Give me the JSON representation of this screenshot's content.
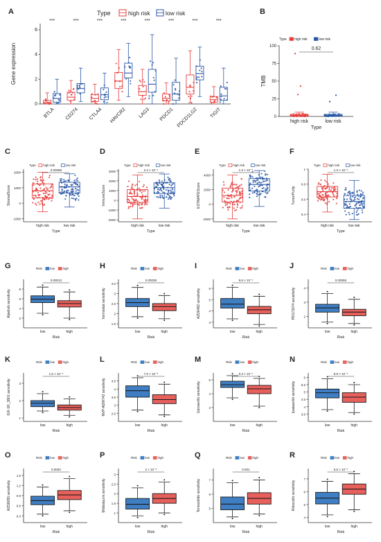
{
  "colors": {
    "high": "#e63b3b",
    "low": "#2856a6",
    "high_fill": "#e8605c",
    "low_fill": "#3f7ec3",
    "axis": "#333333"
  },
  "chart_data": [
    {
      "panel": "A",
      "type": "boxplot",
      "legend_title": "Type",
      "legend": [
        "high risk",
        "low risk"
      ],
      "legend_position": "top",
      "ylabel": "Gene expression",
      "ylim": [
        0,
        6.5
      ],
      "yticks": [
        0,
        2,
        4,
        6
      ],
      "categories": [
        "BTLA",
        "CD274",
        "CTLA4",
        "HAVCR2",
        "LAG3",
        "PDCD1",
        "PDCD1LG2",
        "TIGIT"
      ],
      "significance": [
        "***",
        "***",
        "***",
        "***",
        "***",
        "***",
        "***",
        "***"
      ],
      "series": [
        {
          "name": "high risk",
          "boxes": [
            [
              0,
              0.02,
              0.1,
              0.3,
              0.9
            ],
            [
              0,
              0.3,
              0.55,
              0.95,
              1.9
            ],
            [
              0,
              0.2,
              0.45,
              0.75,
              1.6
            ],
            [
              0.3,
              1.25,
              1.85,
              2.55,
              4.4
            ],
            [
              0,
              0.7,
              1.0,
              1.5,
              2.8
            ],
            [
              0,
              0.25,
              0.45,
              0.8,
              1.7
            ],
            [
              0.1,
              0.8,
              1.35,
              2.35,
              4.3
            ],
            [
              0,
              0.15,
              0.35,
              0.6,
              1.4
            ]
          ]
        },
        {
          "name": "low risk",
          "boxes": [
            [
              0,
              0.15,
              0.45,
              0.85,
              2.0
            ],
            [
              0.2,
              0.9,
              1.25,
              1.65,
              2.9
            ],
            [
              0,
              0.35,
              0.75,
              1.3,
              2.5
            ],
            [
              0.6,
              2.1,
              2.5,
              3.3,
              4.9
            ],
            [
              0,
              0.95,
              1.6,
              2.8,
              5.6
            ],
            [
              0,
              0.3,
              0.8,
              1.75,
              3.7
            ],
            [
              0.6,
              1.95,
              2.45,
              3.05,
              4.6
            ],
            [
              0,
              0.3,
              0.65,
              1.35,
              2.9
            ]
          ]
        }
      ]
    },
    {
      "panel": "B",
      "type": "boxplot",
      "legend_title": "Type",
      "legend": [
        "high risk",
        "low risk"
      ],
      "ylabel": "TMB",
      "xlabel": "Type",
      "categories": [
        "high risk",
        "low risk"
      ],
      "ylim": [
        0,
        100
      ],
      "yticks": [
        0,
        25,
        50,
        75,
        100
      ],
      "pvalue": "0.62",
      "boxes": [
        [
          0,
          0.5,
          1.5,
          3,
          6
        ],
        [
          0,
          0.5,
          1.5,
          3,
          6
        ]
      ]
    },
    {
      "panel": "C",
      "type": "boxplot",
      "ylabel": "StromalScore",
      "xlabel": "Type",
      "categories": [
        "high risk",
        "low risk"
      ],
      "legend_title": "Type",
      "legend": [
        "high risk",
        "low risk"
      ],
      "ylim": [
        -1200,
        2200
      ],
      "yticks": [
        -1000,
        0,
        1000,
        2000
      ],
      "pvalue": "0.00089",
      "boxes": [
        [
          -550,
          350,
          800,
          1250,
          2000
        ],
        [
          -250,
          650,
          1050,
          1350,
          1900
        ]
      ]
    },
    {
      "panel": "D",
      "type": "boxplot",
      "ylabel": "ImmuneScore",
      "xlabel": "Type",
      "categories": [
        "high risk",
        "low risk"
      ],
      "legend_title": "Type",
      "legend": [
        "high risk",
        "low risk"
      ],
      "ylim": [
        -2200,
        3200
      ],
      "yticks": [
        -2000,
        -1000,
        0,
        1000,
        2000,
        3000
      ],
      "pvalue": "2.4 × 10⁻⁶",
      "boxes": [
        [
          -1900,
          -200,
          400,
          1100,
          2600
        ],
        [
          -800,
          700,
          1300,
          1800,
          2700
        ]
      ]
    },
    {
      "panel": "E",
      "type": "boxplot",
      "ylabel": "ESTIMATEScore",
      "xlabel": "Type",
      "categories": [
        "high risk",
        "low risk"
      ],
      "legend_title": "Type",
      "legend": [
        "high risk",
        "low risk"
      ],
      "ylim": [
        -2400,
        4800
      ],
      "yticks": [
        -2000,
        0,
        2000,
        4000
      ],
      "pvalue": "1.3 × 10⁻⁵",
      "boxes": [
        [
          -2000,
          300,
          1200,
          2200,
          4000
        ],
        [
          -300,
          1800,
          2700,
          3500,
          4600
        ]
      ]
    },
    {
      "panel": "F",
      "type": "boxplot",
      "ylabel": "TumorPurity",
      "xlabel": "Type",
      "categories": [
        "high risk",
        "low risk"
      ],
      "legend_title": "Type",
      "legend": [
        "high risk",
        "low risk"
      ],
      "ylim": [
        0.3,
        1.0
      ],
      "yticks": [
        0.4,
        0.6,
        0.8,
        1.0
      ],
      "pvalue": "1.3 × 10⁻⁵",
      "boxes": [
        [
          0.43,
          0.63,
          0.7,
          0.77,
          0.93
        ],
        [
          0.33,
          0.48,
          0.57,
          0.65,
          0.85
        ]
      ]
    },
    {
      "panel": "G",
      "type": "boxplot",
      "ylabel": "Alpelisib sensitivity",
      "xlabel": "Risk",
      "categories": [
        "low",
        "high"
      ],
      "legend_title": "Risk",
      "legend": [
        "low",
        "high"
      ],
      "ylim": [
        0,
        10
      ],
      "yticks": [
        2,
        4,
        6,
        8
      ],
      "pvalue": "0.00013",
      "boxes": [
        [
          3.0,
          5.2,
          5.9,
          6.6,
          8.4
        ],
        [
          2.0,
          4.3,
          5.0,
          5.6,
          7.4
        ]
      ]
    },
    {
      "panel": "H",
      "type": "boxplot",
      "ylabel": "Vorinostat sensitivity",
      "xlabel": "Risk",
      "categories": [
        "low",
        "high"
      ],
      "legend_title": "Risk",
      "legend": [
        "low",
        "high"
      ],
      "ylim": [
        1.3,
        3.7
      ],
      "yticks": [
        1.5,
        2.0,
        2.5,
        3.0,
        3.5
      ],
      "pvalue": "0.00038",
      "boxes": [
        [
          1.85,
          2.35,
          2.55,
          2.75,
          3.3
        ],
        [
          1.75,
          2.15,
          2.35,
          2.5,
          2.9
        ]
      ]
    },
    {
      "panel": "I",
      "type": "boxplot",
      "ylabel": "AZD6482 sensitivity",
      "xlabel": "Risk",
      "categories": [
        "low",
        "high"
      ],
      "legend_title": "Risk",
      "legend": [
        "low",
        "high"
      ],
      "ylim": [
        2.5,
        6.8
      ],
      "yticks": [
        3,
        4,
        5,
        6
      ],
      "pvalue": "8.6 × 10⁻⁵",
      "boxes": [
        [
          3.3,
          4.25,
          4.6,
          5.1,
          6.1
        ],
        [
          2.8,
          3.75,
          4.1,
          4.4,
          5.3
        ]
      ]
    },
    {
      "panel": "J",
      "type": "boxplot",
      "ylabel": "PD173074 sensitivity",
      "xlabel": "Risk",
      "categories": [
        "low",
        "high"
      ],
      "legend_title": "Risk",
      "legend": [
        "low",
        "high"
      ],
      "ylim": [
        1.2,
        4.6
      ],
      "yticks": [
        2,
        3,
        4
      ],
      "pvalue": "0.00058",
      "boxes": [
        [
          1.6,
          2.3,
          2.6,
          2.85,
          3.6
        ],
        [
          1.5,
          2.05,
          2.3,
          2.5,
          3.2
        ]
      ]
    },
    {
      "panel": "K",
      "type": "boxplot",
      "ylabel": "IGF-1R_3801 sensitivity",
      "xlabel": "Risk",
      "categories": [
        "low",
        "high"
      ],
      "legend_title": "Risk",
      "legend": [
        "low",
        "high"
      ],
      "ylim": [
        0.8,
        3.6
      ],
      "yticks": [
        1,
        2,
        3
      ],
      "pvalue": "1.5 × 10⁻⁵",
      "boxes": [
        [
          1.4,
          1.65,
          1.85,
          2.0,
          2.4
        ],
        [
          1.15,
          1.45,
          1.6,
          1.75,
          2.1
        ]
      ]
    },
    {
      "panel": "L",
      "type": "boxplot",
      "ylabel": "NVP-ADW742 sensitivity",
      "xlabel": "Risk",
      "categories": [
        "low",
        "high"
      ],
      "legend_title": "Risk",
      "legend": [
        "low",
        "high"
      ],
      "ylim": [
        2.0,
        5.0
      ],
      "yticks": [
        2.5,
        3.0,
        3.5,
        4.0,
        4.5
      ],
      "pvalue": "7.5 × 10⁻⁵",
      "boxes": [
        [
          2.7,
          3.5,
          3.9,
          4.2,
          4.7
        ],
        [
          2.4,
          3.1,
          3.35,
          3.65,
          4.3
        ]
      ]
    },
    {
      "panel": "M",
      "type": "boxplot",
      "ylabel": "Uprosertib sensitivity",
      "xlabel": "Risk",
      "categories": [
        "low",
        "high"
      ],
      "legend_title": "Risk",
      "legend": [
        "low",
        "high"
      ],
      "ylim": [
        2.0,
        5.5
      ],
      "yticks": [
        3,
        4,
        5
      ],
      "pvalue": "6.3 × 10⁻⁵",
      "boxes": [
        [
          3.7,
          4.45,
          4.65,
          4.9,
          5.3
        ],
        [
          3.1,
          4.0,
          4.35,
          4.6,
          5.1
        ]
      ]
    },
    {
      "panel": "N",
      "type": "boxplot",
      "ylabel": "Ipatasertib sensitivity",
      "xlabel": "Risk",
      "categories": [
        "low",
        "high"
      ],
      "legend_title": "Risk",
      "legend": [
        "low",
        "high"
      ],
      "ylim": [
        3.0,
        6.3
      ],
      "yticks": [
        3.5,
        4.0,
        4.5,
        5.0,
        5.5,
        6.0
      ],
      "pvalue": "8.9 × 10⁻⁵",
      "boxes": [
        [
          3.8,
          4.6,
          4.95,
          5.2,
          5.9
        ],
        [
          3.6,
          4.3,
          4.65,
          4.95,
          5.5
        ]
      ]
    },
    {
      "panel": "O",
      "type": "boxplot",
      "ylabel": "AZD8055 sensitivity",
      "xlabel": "Risk",
      "categories": [
        "low",
        "high"
      ],
      "legend_title": "Risk",
      "legend": [
        "low",
        "high"
      ],
      "ylim": [
        0.1,
        1.7
      ],
      "yticks": [
        0.3,
        0.6,
        0.9,
        1.2,
        1.5
      ],
      "pvalue": "0.0003",
      "boxes": [
        [
          0.35,
          0.63,
          0.75,
          0.88,
          1.15
        ],
        [
          0.45,
          0.78,
          0.92,
          1.05,
          1.4
        ]
      ]
    },
    {
      "panel": "P",
      "type": "boxplot",
      "ylabel": "Midostaurin sensitivity",
      "xlabel": "Risk",
      "categories": [
        "low",
        "high"
      ],
      "legend_title": "Risk",
      "legend": [
        "low",
        "high"
      ],
      "ylim": [
        0.5,
        3.3
      ],
      "yticks": [
        1.0,
        1.5,
        2.0,
        2.5,
        3.0
      ],
      "pvalue": "2 × 10⁻⁵",
      "boxes": [
        [
          0.85,
          1.2,
          1.45,
          1.75,
          2.3
        ],
        [
          1.0,
          1.5,
          1.75,
          2.0,
          2.6
        ]
      ]
    },
    {
      "panel": "Q",
      "type": "boxplot",
      "ylabel": "Temozolide sensitivity",
      "xlabel": "Risk",
      "categories": [
        "low",
        "high"
      ],
      "legend_title": "Risk",
      "legend": [
        "low",
        "high"
      ],
      "ylim": [
        4.0,
        7.8
      ],
      "yticks": [
        5,
        6,
        7
      ],
      "pvalue": "0.001",
      "boxes": [
        [
          4.4,
          4.9,
          5.3,
          5.8,
          6.8
        ],
        [
          4.6,
          5.3,
          5.7,
          6.1,
          7.0
        ]
      ]
    },
    {
      "panel": "R",
      "type": "boxplot",
      "ylabel": "Ribociclib sensitivity",
      "xlabel": "Risk",
      "categories": [
        "low",
        "high"
      ],
      "legend_title": "Risk",
      "legend": [
        "low",
        "high"
      ],
      "ylim": [
        3.6,
        7.8
      ],
      "yticks": [
        4,
        5,
        6,
        7
      ],
      "pvalue": "5.6 × 10⁻⁵",
      "boxes": [
        [
          4.2,
          5.05,
          5.5,
          5.95,
          6.8
        ],
        [
          4.6,
          5.8,
          6.2,
          6.6,
          7.4
        ]
      ]
    }
  ]
}
